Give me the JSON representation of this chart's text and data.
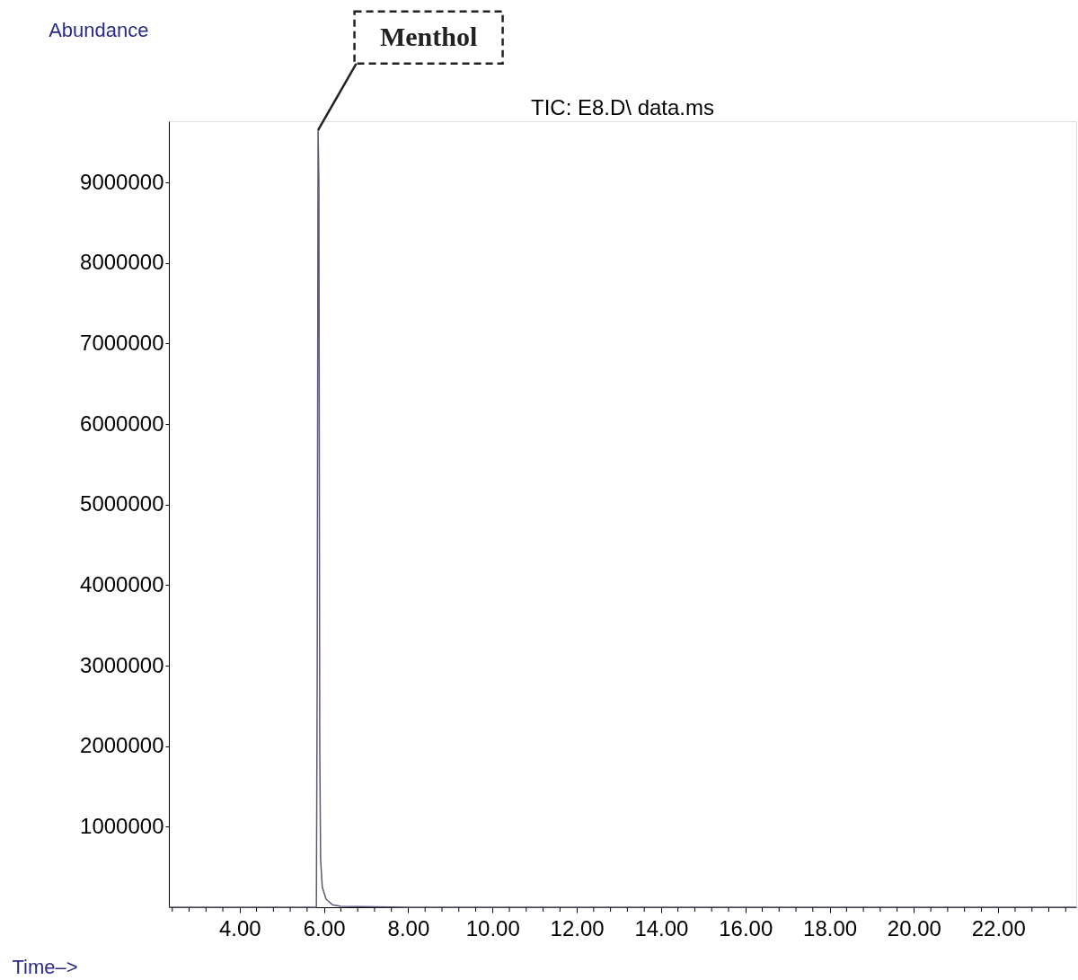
{
  "chart_data": {
    "type": "line",
    "title": "TIC: E8.D\\ data.ms",
    "ylabel": "Abundance",
    "xlabel": "Time–>",
    "x": [
      2.32,
      5.82,
      5.84,
      5.86,
      5.88,
      5.9,
      5.92,
      5.96,
      6.05,
      6.2,
      6.4,
      8.0,
      23.85
    ],
    "series": [
      {
        "color": "#5a5a7a",
        "values": [
          0,
          0,
          3000000,
          9650000,
          9000000,
          2000000,
          600000,
          250000,
          100000,
          30000,
          10000,
          0,
          0
        ]
      }
    ],
    "xlim": [
      2.32,
      23.85
    ],
    "ylim": [
      0,
      9760000
    ],
    "xticks": [
      {
        "value": 2.4,
        "label": null
      },
      {
        "value": 2.8,
        "label": null
      },
      {
        "value": 3.2,
        "label": null
      },
      {
        "value": 3.6,
        "label": null
      },
      {
        "value": 4.0,
        "label": "4.00"
      },
      {
        "value": 4.4,
        "label": null
      },
      {
        "value": 4.8,
        "label": null
      },
      {
        "value": 5.2,
        "label": null
      },
      {
        "value": 5.6,
        "label": null
      },
      {
        "value": 6.0,
        "label": "6.00"
      },
      {
        "value": 6.4,
        "label": null
      },
      {
        "value": 6.8,
        "label": null
      },
      {
        "value": 7.2,
        "label": null
      },
      {
        "value": 7.6,
        "label": null
      },
      {
        "value": 8.0,
        "label": "8.00"
      },
      {
        "value": 8.4,
        "label": null
      },
      {
        "value": 8.8,
        "label": null
      },
      {
        "value": 9.2,
        "label": null
      },
      {
        "value": 9.6,
        "label": null
      },
      {
        "value": 10.0,
        "label": "10.00"
      },
      {
        "value": 10.4,
        "label": null
      },
      {
        "value": 10.8,
        "label": null
      },
      {
        "value": 11.2,
        "label": null
      },
      {
        "value": 11.6,
        "label": null
      },
      {
        "value": 12.0,
        "label": "12.00"
      },
      {
        "value": 12.4,
        "label": null
      },
      {
        "value": 12.8,
        "label": null
      },
      {
        "value": 13.2,
        "label": null
      },
      {
        "value": 13.6,
        "label": null
      },
      {
        "value": 14.0,
        "label": "14.00"
      },
      {
        "value": 14.4,
        "label": null
      },
      {
        "value": 14.8,
        "label": null
      },
      {
        "value": 15.2,
        "label": null
      },
      {
        "value": 15.6,
        "label": null
      },
      {
        "value": 16.0,
        "label": "16.00"
      },
      {
        "value": 16.4,
        "label": null
      },
      {
        "value": 16.8,
        "label": null
      },
      {
        "value": 17.2,
        "label": null
      },
      {
        "value": 17.6,
        "label": null
      },
      {
        "value": 18.0,
        "label": "18.00"
      },
      {
        "value": 18.4,
        "label": null
      },
      {
        "value": 18.8,
        "label": null
      },
      {
        "value": 19.2,
        "label": null
      },
      {
        "value": 19.6,
        "label": null
      },
      {
        "value": 20.0,
        "label": "20.00"
      },
      {
        "value": 20.4,
        "label": null
      },
      {
        "value": 20.8,
        "label": null
      },
      {
        "value": 21.2,
        "label": null
      },
      {
        "value": 21.6,
        "label": null
      },
      {
        "value": 22.0,
        "label": "22.00"
      },
      {
        "value": 22.4,
        "label": null
      },
      {
        "value": 22.8,
        "label": null
      },
      {
        "value": 23.2,
        "label": null
      },
      {
        "value": 23.6,
        "label": null
      }
    ],
    "yticks": [
      1000000,
      2000000,
      3000000,
      4000000,
      5000000,
      6000000,
      7000000,
      8000000,
      9000000
    ],
    "annotations": [
      {
        "text": "Menthol",
        "x": 5.86,
        "y": 9650000
      }
    ],
    "grid": false,
    "marker": "none",
    "line_style": "solid"
  }
}
